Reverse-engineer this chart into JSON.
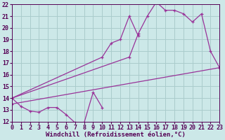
{
  "background_color": "#cce8e8",
  "grid_color": "#aacccc",
  "line_color": "#993399",
  "xlabel": "Windchill (Refroidissement éolien,°C)",
  "xlabel_fontsize": 6.5,
  "tick_fontsize": 6,
  "xmin": 0,
  "xmax": 23,
  "ymin": 12,
  "ymax": 22,
  "series": [
    {
      "x": [
        0,
        1,
        2,
        3,
        4,
        5,
        6,
        7,
        8,
        9,
        10
      ],
      "y": [
        14.0,
        13.3,
        12.9,
        12.8,
        13.2,
        13.2,
        12.6,
        11.9,
        11.9,
        14.5,
        13.2
      ]
    },
    {
      "x": [
        0,
        10,
        11,
        12,
        13,
        14
      ],
      "y": [
        14.0,
        17.5,
        18.7,
        19.0,
        21.0,
        19.3
      ]
    },
    {
      "x": [
        0,
        13,
        14,
        15,
        16,
        17,
        18,
        19,
        20,
        21,
        22,
        23
      ],
      "y": [
        14.0,
        17.5,
        19.5,
        21.0,
        22.2,
        21.5,
        21.5,
        21.2,
        20.5,
        21.2,
        18.0,
        16.6
      ]
    },
    {
      "x": [
        0,
        23
      ],
      "y": [
        13.5,
        16.6
      ]
    }
  ]
}
